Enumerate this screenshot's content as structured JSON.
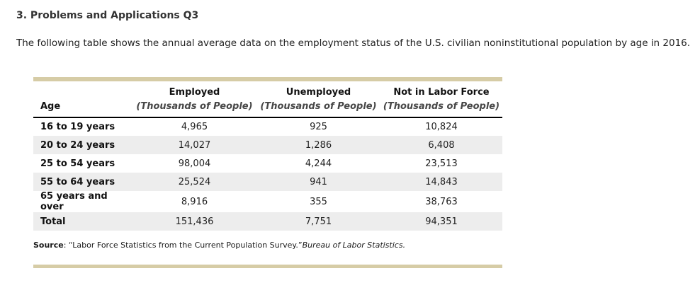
{
  "page": {
    "title": "3. Problems and Applications Q3",
    "intro": "The following table shows the annual average data on the employment status of the U.S. civilian noninstitutional population by age in 2016."
  },
  "colors": {
    "rule_tan": "#d6cca6",
    "row_stripe": "#ededed",
    "header_border": "#000000"
  },
  "table": {
    "columns": {
      "age_label": "Age",
      "employed_label": "Employed",
      "unemployed_label": "Unemployed",
      "not_in_labor_force_label": "Not in Labor Force",
      "unit_label": "(Thousands of People)"
    },
    "rows": [
      {
        "age": "16 to 19 years",
        "employed": "4,965",
        "unemployed": "925",
        "not_in_labor_force": "10,824"
      },
      {
        "age": "20 to 24 years",
        "employed": "14,027",
        "unemployed": "1,286",
        "not_in_labor_force": "6,408"
      },
      {
        "age": "25 to 54 years",
        "employed": "98,004",
        "unemployed": "4,244",
        "not_in_labor_force": "23,513"
      },
      {
        "age": "55 to 64 years",
        "employed": "25,524",
        "unemployed": "941",
        "not_in_labor_force": "14,843"
      },
      {
        "age": "65 years and over",
        "employed": "8,916",
        "unemployed": "355",
        "not_in_labor_force": "38,763"
      },
      {
        "age": "Total",
        "employed": "151,436",
        "unemployed": "7,751",
        "not_in_labor_force": "94,351"
      }
    ]
  },
  "source": {
    "label": "Source",
    "text": ": “Labor Force Statistics from the Current Population Survey.”",
    "citation": "Bureau of Labor Statistics."
  }
}
